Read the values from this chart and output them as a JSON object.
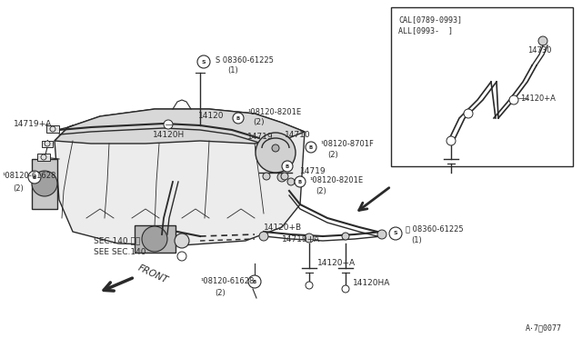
{
  "bg_color": "#f5f5f0",
  "line_color": "#2a2a2a",
  "fig_number": "A⋅7：0077",
  "inset_header_line1": "CAL[0789-0993]",
  "inset_header_line2": "ALL[0993-  ]",
  "figsize": [
    6.4,
    3.72
  ],
  "dpi": 100
}
